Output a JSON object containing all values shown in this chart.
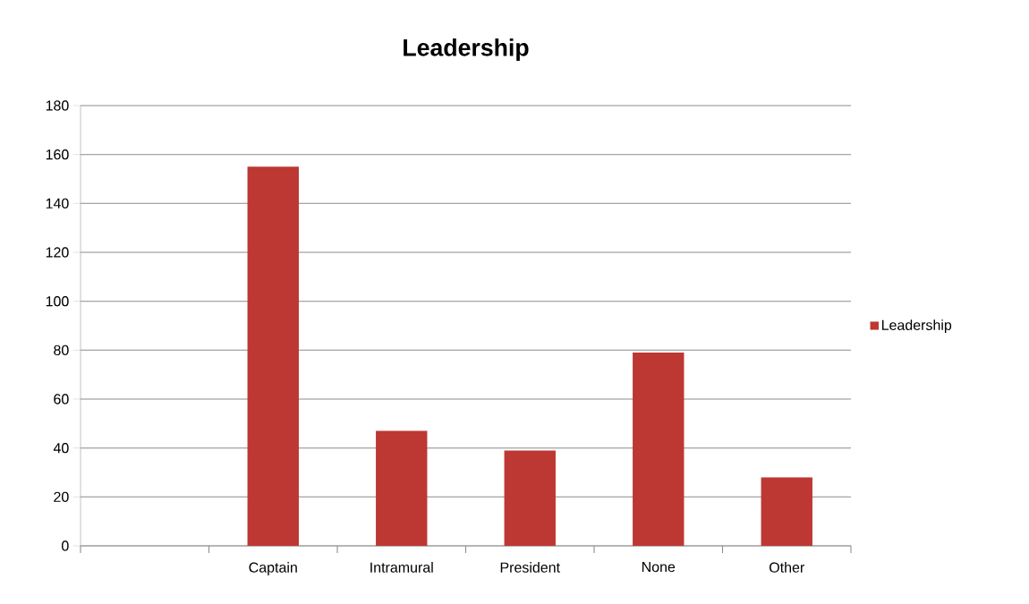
{
  "chart_data": {
    "type": "bar",
    "title": "Leadership",
    "categories": [
      null,
      "Captain",
      "Intramural",
      "President",
      "None",
      "Other"
    ],
    "series": [
      {
        "name": "Leadership",
        "color": "#bd3833",
        "values": [
          null,
          155,
          47,
          39,
          79,
          28
        ]
      }
    ],
    "ylim": [
      0,
      180
    ],
    "yticks": [
      0,
      20,
      40,
      60,
      80,
      100,
      120,
      140,
      160,
      180
    ],
    "grid": "y",
    "legend": "right"
  }
}
